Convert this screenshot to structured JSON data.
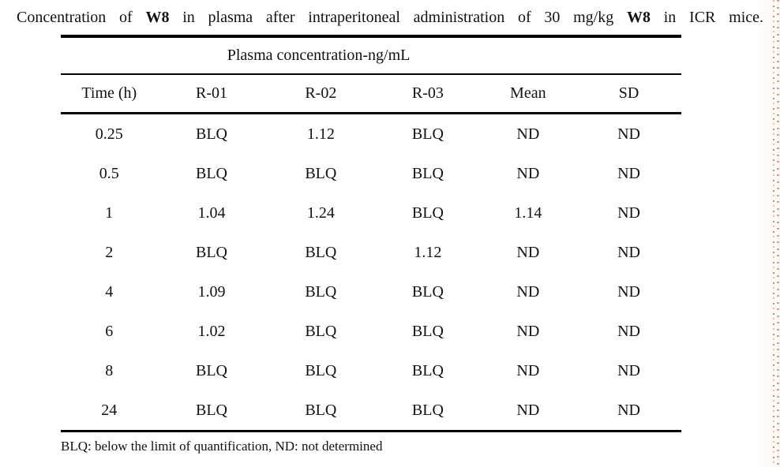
{
  "page": {
    "background": "#fffffe",
    "text_color": "#111111",
    "rule_color": "#000000",
    "edge_mark_light": "#e9b98c",
    "edge_mark_dark": "#7a6355"
  },
  "title": {
    "segments": [
      {
        "text": "Concentration of ",
        "bold": false
      },
      {
        "text": "W8",
        "bold": true
      },
      {
        "text": " in plasma after intraperitoneal administration of 30 mg/kg ",
        "bold": false
      },
      {
        "text": "W8",
        "bold": true
      },
      {
        "text": " in ICR mice.",
        "bold": false
      }
    ]
  },
  "table": {
    "group_header": "Plasma concentration-ng/mL",
    "columns": [
      "Time (h)",
      "R-01",
      "R-02",
      "R-03",
      "Mean",
      "SD"
    ],
    "rows": [
      [
        "0.25",
        "BLQ",
        "1.12",
        "BLQ",
        "ND",
        "ND"
      ],
      [
        "0.5",
        "BLQ",
        "BLQ",
        "BLQ",
        "ND",
        "ND"
      ],
      [
        "1",
        "1.04",
        "1.24",
        "BLQ",
        "1.14",
        "ND"
      ],
      [
        "2",
        "BLQ",
        "BLQ",
        "1.12",
        "ND",
        "ND"
      ],
      [
        "4",
        "1.09",
        "BLQ",
        "BLQ",
        "ND",
        "ND"
      ],
      [
        "6",
        "1.02",
        "BLQ",
        "BLQ",
        "ND",
        "ND"
      ],
      [
        "8",
        "BLQ",
        "BLQ",
        "BLQ",
        "ND",
        "ND"
      ],
      [
        "24",
        "BLQ",
        "BLQ",
        "BLQ",
        "ND",
        "ND"
      ]
    ],
    "footnote": "BLQ: below the limit of quantification, ND: not determined"
  },
  "chart_data": {
    "type": "table",
    "title": "Concentration of W8 in plasma after intraperitoneal administration of 30 mg/kg W8 in ICR mice.",
    "group_header": "Plasma concentration-ng/mL",
    "columns": [
      "Time (h)",
      "R-01",
      "R-02",
      "R-03",
      "Mean",
      "SD"
    ],
    "rows": [
      [
        "0.25",
        "BLQ",
        "1.12",
        "BLQ",
        "ND",
        "ND"
      ],
      [
        "0.5",
        "BLQ",
        "BLQ",
        "BLQ",
        "ND",
        "ND"
      ],
      [
        "1",
        "1.04",
        "1.24",
        "BLQ",
        "1.14",
        "ND"
      ],
      [
        "2",
        "BLQ",
        "BLQ",
        "1.12",
        "ND",
        "ND"
      ],
      [
        "4",
        "1.09",
        "BLQ",
        "BLQ",
        "ND",
        "ND"
      ],
      [
        "6",
        "1.02",
        "BLQ",
        "BLQ",
        "ND",
        "ND"
      ],
      [
        "8",
        "BLQ",
        "BLQ",
        "BLQ",
        "ND",
        "ND"
      ],
      [
        "24",
        "BLQ",
        "BLQ",
        "BLQ",
        "ND",
        "ND"
      ]
    ],
    "footnote": "BLQ: below the limit of quantification, ND: not determined"
  }
}
